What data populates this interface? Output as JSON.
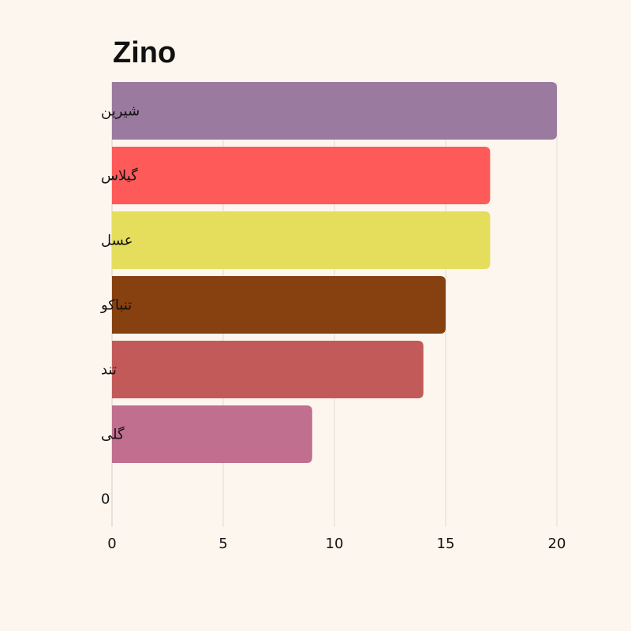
{
  "chart_data": {
    "type": "bar",
    "orientation": "horizontal",
    "title": "Zino",
    "categories": [
      "شیرین",
      "گیلاس",
      "عسل",
      "تنباکو",
      "تند",
      "گلی",
      "0"
    ],
    "values": [
      20,
      17,
      17,
      15,
      14,
      9,
      0
    ],
    "colors": [
      "#9a7a9e",
      "#ff5a5a",
      "#e4de5c",
      "#87400f",
      "#c25a5a",
      "#c16f8e",
      "#cccccc"
    ],
    "x_ticks": [
      0,
      5,
      10,
      15,
      20
    ],
    "xlim": [
      0,
      20
    ],
    "xlabel": "",
    "ylabel": "",
    "grid": "vertical"
  }
}
